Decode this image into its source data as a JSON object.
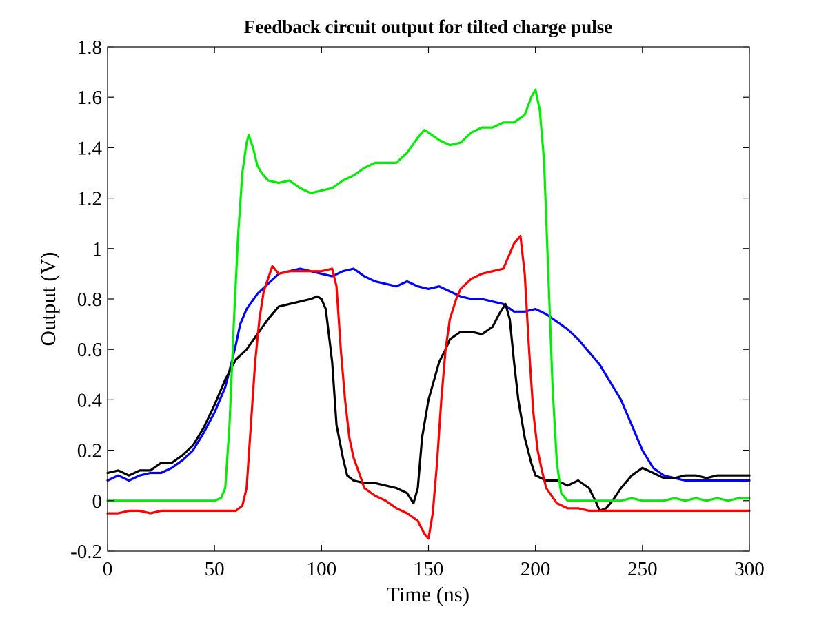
{
  "chart_data": {
    "type": "line",
    "title": "Feedback circuit output for tilted charge pulse",
    "xlabel": "Time (ns)",
    "ylabel": "Output (V)",
    "xlim": [
      0,
      300
    ],
    "ylim": [
      -0.2,
      1.8
    ],
    "xticks": [
      0,
      50,
      100,
      150,
      200,
      250,
      300
    ],
    "xtick_labels": [
      "0",
      "50",
      "100",
      "150",
      "200",
      "250",
      "300"
    ],
    "yticks": [
      -0.2,
      0,
      0.2,
      0.4,
      0.6,
      0.8,
      1,
      1.2,
      1.4,
      1.6,
      1.8
    ],
    "ytick_labels": [
      "-0.2",
      "0",
      "0.2",
      "0.4",
      "0.6",
      "0.8",
      "1",
      "1.2",
      "1.4",
      "1.6",
      "1.8"
    ],
    "grid": false,
    "series": [
      {
        "color": "#0000ff",
        "points": [
          [
            0,
            0.08
          ],
          [
            5,
            0.1
          ],
          [
            10,
            0.08
          ],
          [
            15,
            0.1
          ],
          [
            20,
            0.11
          ],
          [
            25,
            0.11
          ],
          [
            30,
            0.13
          ],
          [
            35,
            0.16
          ],
          [
            40,
            0.2
          ],
          [
            45,
            0.27
          ],
          [
            50,
            0.35
          ],
          [
            55,
            0.45
          ],
          [
            58,
            0.55
          ],
          [
            60,
            0.62
          ],
          [
            62,
            0.7
          ],
          [
            65,
            0.76
          ],
          [
            70,
            0.82
          ],
          [
            75,
            0.86
          ],
          [
            80,
            0.9
          ],
          [
            85,
            0.91
          ],
          [
            90,
            0.92
          ],
          [
            95,
            0.91
          ],
          [
            100,
            0.9
          ],
          [
            105,
            0.89
          ],
          [
            110,
            0.91
          ],
          [
            115,
            0.92
          ],
          [
            120,
            0.89
          ],
          [
            125,
            0.87
          ],
          [
            130,
            0.86
          ],
          [
            135,
            0.85
          ],
          [
            140,
            0.87
          ],
          [
            145,
            0.85
          ],
          [
            150,
            0.84
          ],
          [
            155,
            0.85
          ],
          [
            160,
            0.83
          ],
          [
            165,
            0.81
          ],
          [
            170,
            0.8
          ],
          [
            175,
            0.8
          ],
          [
            180,
            0.79
          ],
          [
            185,
            0.78
          ],
          [
            190,
            0.75
          ],
          [
            195,
            0.75
          ],
          [
            200,
            0.76
          ],
          [
            205,
            0.74
          ],
          [
            210,
            0.71
          ],
          [
            215,
            0.68
          ],
          [
            220,
            0.64
          ],
          [
            225,
            0.59
          ],
          [
            230,
            0.54
          ],
          [
            235,
            0.47
          ],
          [
            240,
            0.4
          ],
          [
            245,
            0.3
          ],
          [
            250,
            0.2
          ],
          [
            255,
            0.13
          ],
          [
            260,
            0.1
          ],
          [
            265,
            0.09
          ],
          [
            270,
            0.08
          ],
          [
            275,
            0.08
          ],
          [
            280,
            0.08
          ],
          [
            285,
            0.08
          ],
          [
            290,
            0.08
          ],
          [
            295,
            0.08
          ],
          [
            300,
            0.08
          ]
        ]
      },
      {
        "color": "#000000",
        "points": [
          [
            0,
            0.11
          ],
          [
            5,
            0.12
          ],
          [
            10,
            0.1
          ],
          [
            15,
            0.12
          ],
          [
            20,
            0.12
          ],
          [
            25,
            0.15
          ],
          [
            30,
            0.15
          ],
          [
            35,
            0.18
          ],
          [
            40,
            0.22
          ],
          [
            45,
            0.29
          ],
          [
            50,
            0.38
          ],
          [
            55,
            0.48
          ],
          [
            60,
            0.56
          ],
          [
            65,
            0.6
          ],
          [
            70,
            0.66
          ],
          [
            75,
            0.72
          ],
          [
            80,
            0.77
          ],
          [
            85,
            0.78
          ],
          [
            90,
            0.79
          ],
          [
            95,
            0.8
          ],
          [
            98,
            0.81
          ],
          [
            100,
            0.8
          ],
          [
            102,
            0.76
          ],
          [
            105,
            0.55
          ],
          [
            107,
            0.3
          ],
          [
            110,
            0.17
          ],
          [
            112,
            0.1
          ],
          [
            115,
            0.08
          ],
          [
            120,
            0.07
          ],
          [
            125,
            0.07
          ],
          [
            130,
            0.06
          ],
          [
            135,
            0.05
          ],
          [
            140,
            0.03
          ],
          [
            143,
            -0.01
          ],
          [
            145,
            0.05
          ],
          [
            147,
            0.25
          ],
          [
            150,
            0.4
          ],
          [
            152,
            0.46
          ],
          [
            155,
            0.55
          ],
          [
            158,
            0.6
          ],
          [
            160,
            0.64
          ],
          [
            165,
            0.67
          ],
          [
            170,
            0.67
          ],
          [
            175,
            0.66
          ],
          [
            180,
            0.69
          ],
          [
            183,
            0.74
          ],
          [
            186,
            0.78
          ],
          [
            188,
            0.72
          ],
          [
            190,
            0.55
          ],
          [
            192,
            0.4
          ],
          [
            195,
            0.25
          ],
          [
            198,
            0.15
          ],
          [
            200,
            0.1
          ],
          [
            205,
            0.08
          ],
          [
            210,
            0.08
          ],
          [
            215,
            0.06
          ],
          [
            220,
            0.08
          ],
          [
            225,
            0.05
          ],
          [
            228,
            0.0
          ],
          [
            230,
            -0.04
          ],
          [
            233,
            -0.03
          ],
          [
            236,
            0.0
          ],
          [
            240,
            0.05
          ],
          [
            245,
            0.1
          ],
          [
            250,
            0.13
          ],
          [
            255,
            0.11
          ],
          [
            260,
            0.09
          ],
          [
            265,
            0.09
          ],
          [
            270,
            0.1
          ],
          [
            275,
            0.1
          ],
          [
            280,
            0.09
          ],
          [
            285,
            0.1
          ],
          [
            290,
            0.1
          ],
          [
            295,
            0.1
          ],
          [
            300,
            0.1
          ]
        ]
      },
      {
        "color": "#00ee00",
        "points": [
          [
            0,
            0.0
          ],
          [
            5,
            0.0
          ],
          [
            10,
            0.0
          ],
          [
            15,
            0.0
          ],
          [
            20,
            0.0
          ],
          [
            25,
            0.0
          ],
          [
            30,
            0.0
          ],
          [
            35,
            0.0
          ],
          [
            40,
            0.0
          ],
          [
            45,
            0.0
          ],
          [
            50,
            0.0
          ],
          [
            53,
            0.01
          ],
          [
            55,
            0.05
          ],
          [
            57,
            0.3
          ],
          [
            59,
            0.7
          ],
          [
            61,
            1.05
          ],
          [
            63,
            1.3
          ],
          [
            65,
            1.42
          ],
          [
            66,
            1.45
          ],
          [
            68,
            1.4
          ],
          [
            70,
            1.33
          ],
          [
            72,
            1.3
          ],
          [
            75,
            1.27
          ],
          [
            80,
            1.26
          ],
          [
            85,
            1.27
          ],
          [
            90,
            1.24
          ],
          [
            95,
            1.22
          ],
          [
            100,
            1.23
          ],
          [
            105,
            1.24
          ],
          [
            110,
            1.27
          ],
          [
            115,
            1.29
          ],
          [
            120,
            1.32
          ],
          [
            125,
            1.34
          ],
          [
            130,
            1.34
          ],
          [
            135,
            1.34
          ],
          [
            140,
            1.38
          ],
          [
            145,
            1.44
          ],
          [
            148,
            1.47
          ],
          [
            150,
            1.46
          ],
          [
            155,
            1.43
          ],
          [
            160,
            1.41
          ],
          [
            165,
            1.42
          ],
          [
            170,
            1.46
          ],
          [
            175,
            1.48
          ],
          [
            180,
            1.48
          ],
          [
            185,
            1.5
          ],
          [
            190,
            1.5
          ],
          [
            195,
            1.53
          ],
          [
            198,
            1.6
          ],
          [
            200,
            1.63
          ],
          [
            202,
            1.55
          ],
          [
            204,
            1.35
          ],
          [
            206,
            0.9
          ],
          [
            208,
            0.45
          ],
          [
            210,
            0.15
          ],
          [
            212,
            0.03
          ],
          [
            215,
            0.0
          ],
          [
            220,
            0.0
          ],
          [
            225,
            0.0
          ],
          [
            230,
            0.0
          ],
          [
            235,
            0.0
          ],
          [
            240,
            0.0
          ],
          [
            245,
            0.01
          ],
          [
            250,
            0.0
          ],
          [
            255,
            0.0
          ],
          [
            260,
            0.0
          ],
          [
            265,
            0.01
          ],
          [
            270,
            0.0
          ],
          [
            275,
            0.01
          ],
          [
            280,
            0.0
          ],
          [
            285,
            0.01
          ],
          [
            290,
            0.0
          ],
          [
            295,
            0.01
          ],
          [
            300,
            0.01
          ]
        ]
      },
      {
        "color": "#ff0000",
        "points": [
          [
            0,
            -0.05
          ],
          [
            5,
            -0.05
          ],
          [
            10,
            -0.04
          ],
          [
            15,
            -0.04
          ],
          [
            20,
            -0.05
          ],
          [
            25,
            -0.04
          ],
          [
            30,
            -0.04
          ],
          [
            35,
            -0.04
          ],
          [
            40,
            -0.04
          ],
          [
            45,
            -0.04
          ],
          [
            50,
            -0.04
          ],
          [
            55,
            -0.04
          ],
          [
            60,
            -0.04
          ],
          [
            63,
            -0.02
          ],
          [
            65,
            0.05
          ],
          [
            67,
            0.3
          ],
          [
            69,
            0.55
          ],
          [
            71,
            0.72
          ],
          [
            73,
            0.83
          ],
          [
            75,
            0.88
          ],
          [
            77,
            0.93
          ],
          [
            80,
            0.9
          ],
          [
            85,
            0.91
          ],
          [
            90,
            0.91
          ],
          [
            95,
            0.91
          ],
          [
            100,
            0.91
          ],
          [
            105,
            0.92
          ],
          [
            107,
            0.85
          ],
          [
            109,
            0.6
          ],
          [
            111,
            0.4
          ],
          [
            113,
            0.25
          ],
          [
            115,
            0.17
          ],
          [
            118,
            0.1
          ],
          [
            120,
            0.05
          ],
          [
            125,
            0.02
          ],
          [
            130,
            0.0
          ],
          [
            135,
            -0.03
          ],
          [
            140,
            -0.05
          ],
          [
            145,
            -0.08
          ],
          [
            148,
            -0.13
          ],
          [
            150,
            -0.15
          ],
          [
            152,
            -0.05
          ],
          [
            154,
            0.15
          ],
          [
            156,
            0.4
          ],
          [
            158,
            0.6
          ],
          [
            160,
            0.72
          ],
          [
            163,
            0.8
          ],
          [
            165,
            0.84
          ],
          [
            170,
            0.88
          ],
          [
            175,
            0.9
          ],
          [
            180,
            0.91
          ],
          [
            185,
            0.92
          ],
          [
            188,
            0.98
          ],
          [
            190,
            1.02
          ],
          [
            193,
            1.05
          ],
          [
            195,
            0.9
          ],
          [
            197,
            0.6
          ],
          [
            199,
            0.35
          ],
          [
            201,
            0.2
          ],
          [
            203,
            0.12
          ],
          [
            205,
            0.05
          ],
          [
            210,
            -0.01
          ],
          [
            215,
            -0.03
          ],
          [
            220,
            -0.03
          ],
          [
            225,
            -0.04
          ],
          [
            230,
            -0.04
          ],
          [
            235,
            -0.04
          ],
          [
            240,
            -0.04
          ],
          [
            245,
            -0.04
          ],
          [
            250,
            -0.04
          ],
          [
            255,
            -0.04
          ],
          [
            260,
            -0.04
          ],
          [
            265,
            -0.04
          ],
          [
            270,
            -0.04
          ],
          [
            275,
            -0.04
          ],
          [
            280,
            -0.04
          ],
          [
            285,
            -0.04
          ],
          [
            290,
            -0.04
          ],
          [
            295,
            -0.04
          ],
          [
            300,
            -0.04
          ]
        ]
      }
    ]
  }
}
